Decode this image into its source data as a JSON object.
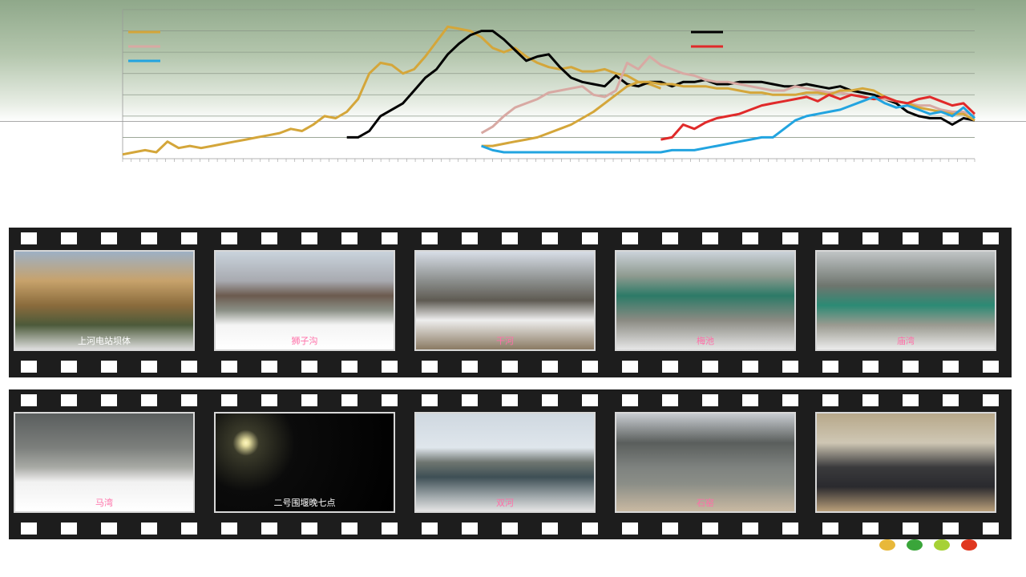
{
  "chart_data": {
    "type": "line",
    "xlabel": "",
    "ylabel": "",
    "ylim": [
      0,
      7
    ],
    "y_ticks": [
      0,
      1,
      2,
      3,
      4,
      5,
      6,
      7
    ],
    "x_count": 100,
    "grid": true,
    "legend_placement": "top-left and top-right",
    "series": [
      {
        "color": "#d4a63a",
        "values": [
          0.2,
          0.3,
          0.4,
          0.3,
          0.8,
          0.5,
          0.6,
          0.5,
          0.6,
          0.7,
          0.8,
          0.9,
          1.0,
          1.1,
          1.2,
          1.4,
          1.3,
          1.6,
          2.0,
          1.9,
          2.2,
          2.8,
          4.0,
          4.5,
          4.4,
          4.0,
          4.2,
          4.8,
          5.5,
          6.2,
          6.1,
          6.0,
          5.7,
          5.2,
          5.0,
          5.2,
          4.8,
          4.5,
          4.3,
          4.2,
          4.3,
          4.1,
          4.1,
          4.2,
          4.0,
          3.9,
          3.6,
          3.5,
          3.3
        ]
      },
      {
        "color": "#000000",
        "values": [
          null,
          null,
          null,
          null,
          null,
          null,
          null,
          null,
          null,
          null,
          null,
          null,
          null,
          null,
          null,
          null,
          null,
          null,
          null,
          null,
          1.0,
          1.0,
          1.3,
          2.0,
          2.3,
          2.6,
          3.2,
          3.8,
          4.2,
          4.9,
          5.4,
          5.8,
          6.0,
          6.0,
          5.6,
          5.1,
          4.6,
          4.8,
          4.9,
          4.3,
          3.8,
          3.6,
          3.5,
          3.4,
          3.9,
          3.5,
          3.4,
          3.6,
          3.6,
          3.4,
          3.6,
          3.6,
          3.7,
          3.5,
          3.5,
          3.6,
          3.6,
          3.6,
          3.5,
          3.4,
          3.4,
          3.5,
          3.4,
          3.3,
          3.4,
          3.2,
          3.1,
          3.0,
          2.8,
          2.6,
          2.2,
          2.0,
          1.9,
          1.9,
          1.6,
          1.9,
          1.8
        ]
      },
      {
        "color": "#d8a9a3",
        "values": [
          null,
          null,
          null,
          null,
          null,
          null,
          null,
          null,
          null,
          null,
          null,
          null,
          null,
          null,
          null,
          null,
          null,
          null,
          null,
          null,
          null,
          null,
          null,
          null,
          null,
          null,
          null,
          null,
          null,
          null,
          null,
          null,
          1.2,
          1.5,
          2.0,
          2.4,
          2.6,
          2.8,
          3.1,
          3.2,
          3.3,
          3.4,
          3.0,
          2.9,
          3.2,
          4.5,
          4.2,
          4.8,
          4.4,
          4.2,
          4.0,
          3.9,
          3.7,
          3.6,
          3.6,
          3.5,
          3.4,
          3.3,
          3.2,
          3.2,
          3.4,
          3.3,
          3.2,
          3.1,
          3.1,
          3.0,
          2.9,
          2.8,
          2.8,
          2.7,
          2.6,
          2.5,
          2.5,
          2.3,
          2.2,
          2.2,
          2.0
        ]
      },
      {
        "color": "#d4a63a",
        "values": [
          null,
          null,
          null,
          null,
          null,
          null,
          null,
          null,
          null,
          null,
          null,
          null,
          null,
          null,
          null,
          null,
          null,
          null,
          null,
          null,
          null,
          null,
          null,
          null,
          null,
          null,
          null,
          null,
          null,
          null,
          null,
          null,
          0.6,
          0.6,
          0.7,
          0.8,
          0.9,
          1.0,
          1.2,
          1.4,
          1.6,
          1.9,
          2.2,
          2.6,
          3.0,
          3.4,
          3.6,
          3.6,
          3.5,
          3.5,
          3.4,
          3.4,
          3.4,
          3.3,
          3.3,
          3.2,
          3.1,
          3.1,
          3.0,
          3.0,
          3.0,
          3.1,
          3.1,
          3.0,
          3.2,
          3.2,
          3.3,
          3.2,
          2.9,
          2.7,
          2.6,
          2.4,
          2.3,
          2.2,
          2.1,
          2.1,
          1.8
        ]
      },
      {
        "color": "#e02a2a",
        "values": [
          null,
          null,
          null,
          null,
          null,
          null,
          null,
          null,
          null,
          null,
          null,
          null,
          null,
          null,
          null,
          null,
          null,
          null,
          null,
          null,
          null,
          null,
          null,
          null,
          null,
          null,
          null,
          null,
          null,
          null,
          null,
          null,
          null,
          null,
          null,
          null,
          null,
          null,
          null,
          null,
          null,
          null,
          null,
          null,
          null,
          null,
          null,
          null,
          0.9,
          1.0,
          1.6,
          1.4,
          1.7,
          1.9,
          2.0,
          2.1,
          2.3,
          2.5,
          2.6,
          2.7,
          2.8,
          2.9,
          2.7,
          3.0,
          2.8,
          3.0,
          2.9,
          2.8,
          2.9,
          2.7,
          2.6,
          2.8,
          2.9,
          2.7,
          2.5,
          2.6,
          2.1
        ]
      },
      {
        "color": "#22a4e0",
        "values": [
          null,
          null,
          null,
          null,
          null,
          null,
          null,
          null,
          null,
          null,
          null,
          null,
          null,
          null,
          null,
          null,
          null,
          null,
          null,
          null,
          null,
          null,
          null,
          null,
          null,
          null,
          null,
          null,
          null,
          null,
          null,
          null,
          0.6,
          0.4,
          0.3,
          0.3,
          0.3,
          0.3,
          0.3,
          0.3,
          0.3,
          0.3,
          0.3,
          0.3,
          0.3,
          0.3,
          0.3,
          0.3,
          0.3,
          0.4,
          0.4,
          0.4,
          0.5,
          0.6,
          0.7,
          0.8,
          0.9,
          1.0,
          1.0,
          1.4,
          1.8,
          2.0,
          2.1,
          2.2,
          2.3,
          2.5,
          2.7,
          2.9,
          2.6,
          2.4,
          2.5,
          2.3,
          2.1,
          2.2,
          2.0,
          2.4,
          1.9
        ]
      }
    ],
    "legend": [
      {
        "color": "#d4a63a",
        "name": ""
      },
      {
        "color": "#d8a9a3",
        "name": ""
      },
      {
        "color": "#22a4e0",
        "name": ""
      },
      {
        "color": "#000000",
        "name": ""
      },
      {
        "color": "#e02a2a",
        "name": ""
      }
    ]
  },
  "film_strip_top": {
    "photos": [
      {
        "caption": "上河电站坝体",
        "caption_color": "white",
        "scene": "dam"
      },
      {
        "caption": "狮子沟",
        "caption_color": "pink",
        "scene": "weir"
      },
      {
        "caption": "干河",
        "caption_color": "pink",
        "scene": "valley"
      },
      {
        "caption": "梅池",
        "caption_color": "pink",
        "scene": "building"
      },
      {
        "caption": "庙湾",
        "caption_color": "pink",
        "scene": "forest"
      }
    ]
  },
  "film_strip_bottom": {
    "photos": [
      {
        "caption": "马湾",
        "caption_color": "pink",
        "scene": "snow"
      },
      {
        "caption": "二号围堰晚七点",
        "caption_color": "white",
        "scene": "night"
      },
      {
        "caption": "双河",
        "caption_color": "pink",
        "scene": "lake"
      },
      {
        "caption": "石窑",
        "caption_color": "pink",
        "scene": "mountain"
      },
      {
        "caption": "",
        "caption_color": "white",
        "scene": "people"
      }
    ]
  },
  "footer_dots": [
    "#e8b83a",
    "#3aa53a",
    "#a6d135",
    "#e0371f"
  ]
}
